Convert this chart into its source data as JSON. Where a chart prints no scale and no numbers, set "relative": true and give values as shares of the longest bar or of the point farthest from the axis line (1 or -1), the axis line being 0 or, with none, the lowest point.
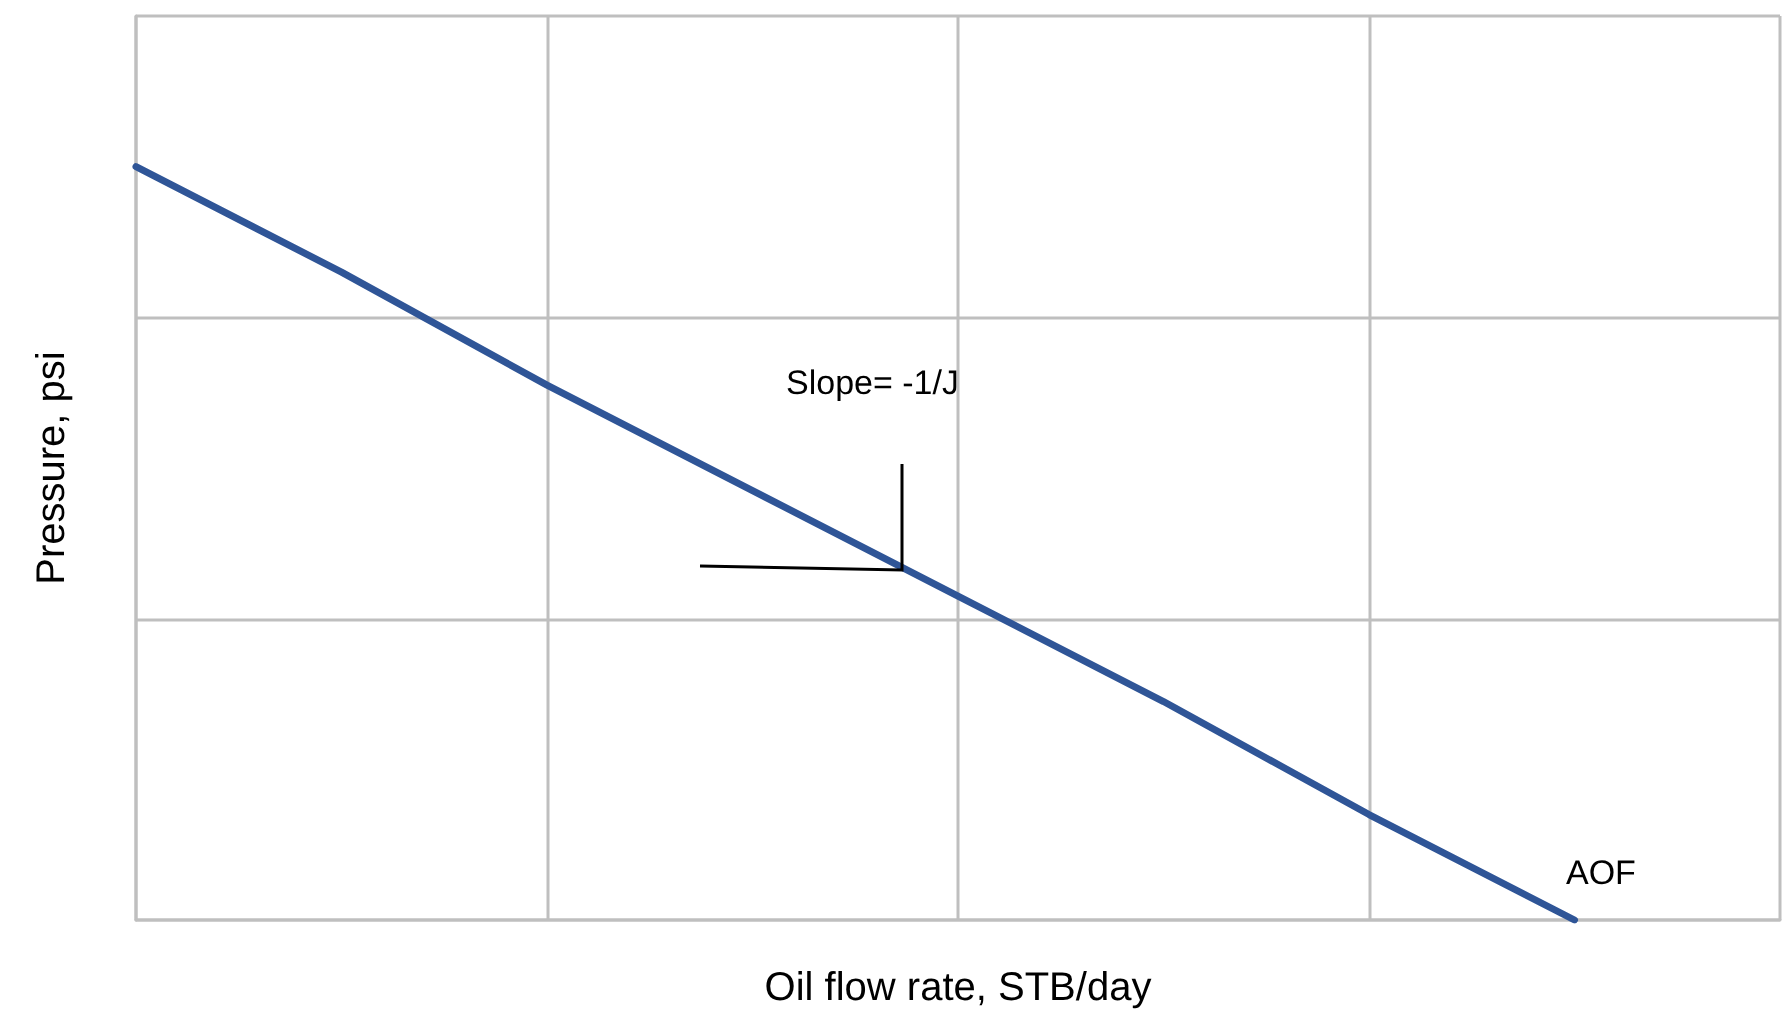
{
  "chart_data": {
    "type": "line",
    "relative": true,
    "xlabel": "Oil flow rate, STB/day",
    "ylabel": "Pressure, psi",
    "categories": [
      null,
      null,
      null,
      null,
      null,
      null,
      null,
      null,
      null
    ],
    "series": [
      {
        "color": "#2f5597",
        "values": [
          1,
          0.86,
          0.71,
          0.57,
          0.43,
          0.29,
          0.14,
          0,
          null
        ]
      }
    ],
    "annotations": [
      "Slope= -1/J",
      "AOF"
    ],
    "grid": true,
    "marker": "none",
    "line_style": "solid"
  }
}
